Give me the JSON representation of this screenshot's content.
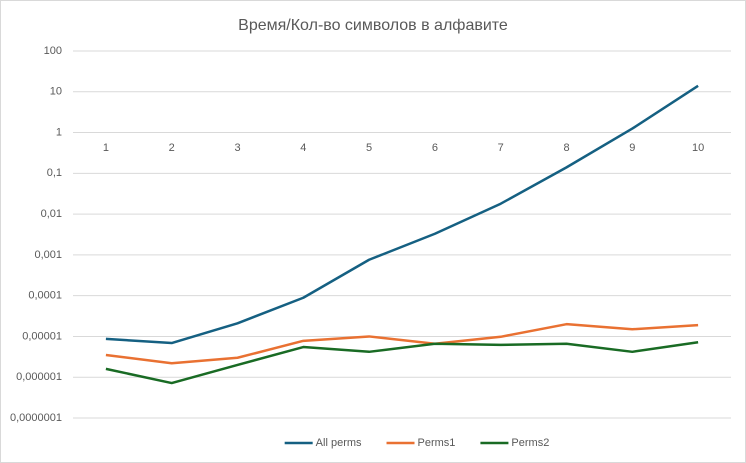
{
  "chart_data": {
    "type": "line",
    "title": "Время/Кол-во символов в алфавите",
    "categories": [
      "1",
      "2",
      "3",
      "4",
      "5",
      "6",
      "7",
      "8",
      "9",
      "10"
    ],
    "series": [
      {
        "name": "All perms",
        "color": "#156082",
        "values": [
          8.7e-06,
          6.9e-06,
          2.1e-05,
          8.9e-05,
          0.00076,
          0.0033,
          0.018,
          0.14,
          1.25,
          14
        ]
      },
      {
        "name": "Perms1",
        "color": "#e97132",
        "values": [
          3.5e-06,
          2.2e-06,
          3e-06,
          7.8e-06,
          1e-05,
          6.6e-06,
          9.8e-06,
          2e-05,
          1.5e-05,
          1.9e-05
        ]
      },
      {
        "name": "Perms2",
        "color": "#196b24",
        "values": [
          1.6e-06,
          7.2e-07,
          2e-06,
          5.5e-06,
          4.2e-06,
          6.6e-06,
          6.2e-06,
          6.6e-06,
          4.2e-06,
          7.2e-06
        ]
      }
    ],
    "log_scale": true,
    "ylim": [
      1e-07,
      100
    ],
    "yticks": [
      100,
      10,
      1,
      {
        "value": 0.1,
        "label": "0,1"
      },
      {
        "value": 0.01,
        "label": "0,01"
      },
      {
        "value": 0.001,
        "label": "0,001"
      },
      {
        "value": 0.0001,
        "label": "0,0001"
      },
      {
        "value": 1e-05,
        "label": "0,00001"
      },
      {
        "value": 1e-06,
        "label": "0,000001"
      },
      {
        "value": 1e-07,
        "label": "0,0000001"
      }
    ],
    "grid": true,
    "legend": "bottom"
  }
}
